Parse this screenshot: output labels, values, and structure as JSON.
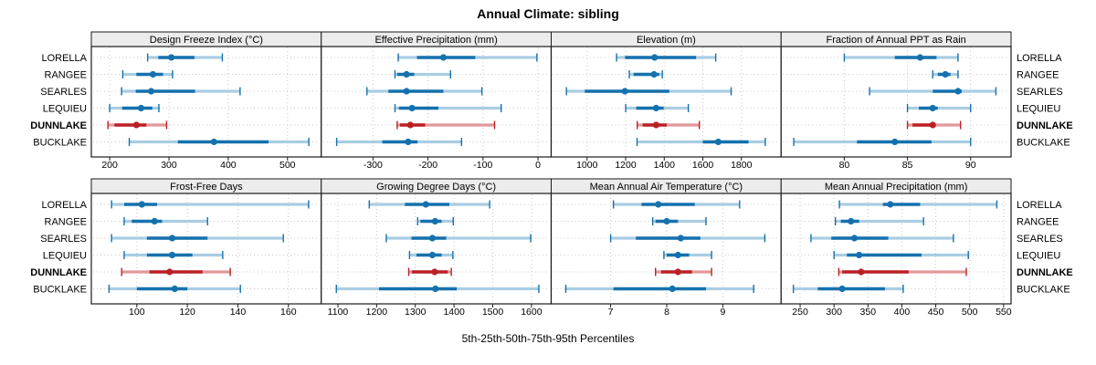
{
  "title": "Annual Climate: sibling",
  "footer": "5th-25th-50th-75th-95th Percentiles",
  "sites": [
    "LORELLA",
    "RANGEE",
    "SEARLES",
    "LEQUIEU",
    "DUNNLAKE",
    "BUCKLAKE"
  ],
  "highlight_site": "DUNNLAKE",
  "colors": {
    "series_dark": "#1571ad",
    "series_light": "#a9cde3",
    "highlight_dark": "#bb2026",
    "highlight_light": "#e2989a",
    "strip_bg": "#ececec",
    "panel_border": "#1a1a1a",
    "grid": "#c9c9c9",
    "text": "#000000"
  },
  "chart_data": {
    "type": "dotplot-percentiles",
    "percentiles": [
      5,
      25,
      50,
      75,
      95
    ],
    "panels": [
      {
        "title": "Design Freeze Index (°C)",
        "row": 0,
        "col": 0,
        "domain": [
          169,
          557
        ],
        "ticks": [
          200,
          300,
          400,
          500
        ],
        "series": [
          {
            "site": "LORELLA",
            "p": [
              264,
              282,
              304,
              343,
              390
            ]
          },
          {
            "site": "RANGEE",
            "p": [
              222,
              245,
              273,
              290,
              306
            ]
          },
          {
            "site": "SEARLES",
            "p": [
              220,
              244,
              270,
              344,
              420
            ]
          },
          {
            "site": "LEQUIEU",
            "p": [
              200,
              221,
              253,
              272,
              283
            ]
          },
          {
            "site": "DUNNLAKE",
            "p": [
              197,
              208,
              245,
              262,
              296
            ]
          },
          {
            "site": "BUCKLAKE",
            "p": [
              233,
              315,
              376,
              468,
              536
            ]
          }
        ]
      },
      {
        "title": "Effective Precipitation (mm)",
        "row": 0,
        "col": 1,
        "domain": [
          -394,
          24
        ],
        "ticks": [
          -300,
          -200,
          -100,
          0
        ],
        "series": [
          {
            "site": "LORELLA",
            "p": [
              -254,
              -220,
              -172,
              -114,
              -2
            ]
          },
          {
            "site": "RANGEE",
            "p": [
              -260,
              -256,
              -239,
              -225,
              -159
            ]
          },
          {
            "site": "SEARLES",
            "p": [
              -311,
              -272,
              -239,
              -172,
              -102
            ]
          },
          {
            "site": "LEQUIEU",
            "p": [
              -260,
              -253,
              -229,
              -181,
              -67
            ]
          },
          {
            "site": "DUNNLAKE",
            "p": [
              -256,
              -251,
              -232,
              -205,
              -79
            ]
          },
          {
            "site": "BUCKLAKE",
            "p": [
              -366,
              -283,
              -236,
              -219,
              -139
            ]
          }
        ]
      },
      {
        "title": "Elevation (m)",
        "row": 0,
        "col": 2,
        "domain": [
          814,
          2006
        ],
        "ticks": [
          1000,
          1200,
          1400,
          1600,
          1800
        ],
        "series": [
          {
            "site": "LORELLA",
            "p": [
              1153,
              1197,
              1350,
              1565,
              1667
            ]
          },
          {
            "site": "RANGEE",
            "p": [
              1219,
              1241,
              1347,
              1374,
              1390
            ]
          },
          {
            "site": "SEARLES",
            "p": [
              893,
              988,
              1196,
              1426,
              1747
            ]
          },
          {
            "site": "LEQUIEU",
            "p": [
              1200,
              1255,
              1358,
              1397,
              1525
            ]
          },
          {
            "site": "DUNNLAKE",
            "p": [
              1260,
              1288,
              1358,
              1413,
              1582
            ]
          },
          {
            "site": "BUCKLAKE",
            "p": [
              1259,
              1600,
              1680,
              1837,
              1924
            ]
          }
        ]
      },
      {
        "title": "Fraction of Annual PPT as Rain",
        "row": 0,
        "col": 3,
        "domain": [
          75,
          93.2
        ],
        "ticks": [
          80,
          85,
          90
        ],
        "series": [
          {
            "site": "LORELLA",
            "p": [
              80,
              84,
              86,
              87.3,
              89
            ]
          },
          {
            "site": "RANGEE",
            "p": [
              87,
              87.4,
              88,
              88.4,
              89
            ]
          },
          {
            "site": "SEARLES",
            "p": [
              82,
              87,
              89,
              89.3,
              92
            ]
          },
          {
            "site": "LEQUIEU",
            "p": [
              85,
              85.9,
              87,
              87.4,
              90
            ]
          },
          {
            "site": "DUNNLAKE",
            "p": [
              85,
              85.4,
              87,
              87.2,
              89.2
            ]
          },
          {
            "site": "BUCKLAKE",
            "p": [
              76,
              81,
              84,
              86.9,
              90
            ]
          }
        ]
      },
      {
        "title": "Frost-Free Days",
        "row": 1,
        "col": 0,
        "domain": [
          82,
          173
        ],
        "ticks": [
          100,
          120,
          140,
          160
        ],
        "series": [
          {
            "site": "LORELLA",
            "p": [
              90,
              95,
              102,
              108,
              168
            ]
          },
          {
            "site": "RANGEE",
            "p": [
              95,
              98,
              107,
              110,
              128
            ]
          },
          {
            "site": "SEARLES",
            "p": [
              90,
              104,
              114,
              128,
              158
            ]
          },
          {
            "site": "LEQUIEU",
            "p": [
              95,
              104,
              114,
              122,
              134
            ]
          },
          {
            "site": "DUNNLAKE",
            "p": [
              94,
              105,
              113,
              126,
              137
            ]
          },
          {
            "site": "BUCKLAKE",
            "p": [
              89,
              100,
              115,
              120,
              141
            ]
          }
        ]
      },
      {
        "title": "Growing Degree Days (°C)",
        "row": 1,
        "col": 1,
        "domain": [
          1057,
          1651
        ],
        "ticks": [
          1100,
          1200,
          1300,
          1400,
          1500,
          1600
        ],
        "series": [
          {
            "site": "LORELLA",
            "p": [
              1181,
              1273,
              1327,
              1388,
              1492
            ]
          },
          {
            "site": "RANGEE",
            "p": [
              1306,
              1313,
              1351,
              1368,
              1398
            ]
          },
          {
            "site": "SEARLES",
            "p": [
              1225,
              1290,
              1344,
              1380,
              1598
            ]
          },
          {
            "site": "LEQUIEU",
            "p": [
              1285,
              1303,
              1344,
              1368,
              1397
            ]
          },
          {
            "site": "DUNNLAKE",
            "p": [
              1283,
              1291,
              1350,
              1384,
              1393
            ]
          },
          {
            "site": "BUCKLAKE",
            "p": [
              1096,
              1206,
              1352,
              1407,
              1619
            ]
          }
        ]
      },
      {
        "title": "Mean Annual Air Temperature (°C)",
        "row": 1,
        "col": 2,
        "domain": [
          5.94,
          10.04
        ],
        "ticks": [
          7,
          8,
          9
        ],
        "series": [
          {
            "site": "LORELLA",
            "p": [
              7.05,
              7.55,
              7.85,
              8.5,
              9.3
            ]
          },
          {
            "site": "RANGEE",
            "p": [
              7.75,
              7.8,
              8.0,
              8.2,
              8.7
            ]
          },
          {
            "site": "SEARLES",
            "p": [
              7.0,
              7.45,
              8.25,
              8.6,
              9.75
            ]
          },
          {
            "site": "LEQUIEU",
            "p": [
              7.95,
              8.0,
              8.2,
              8.4,
              8.8
            ]
          },
          {
            "site": "DUNNLAKE",
            "p": [
              7.8,
              7.9,
              8.2,
              8.45,
              8.8
            ]
          },
          {
            "site": "BUCKLAKE",
            "p": [
              6.2,
              7.05,
              8.1,
              8.7,
              9.55
            ]
          }
        ]
      },
      {
        "title": "Mean Annual Precipitation (mm)",
        "row": 1,
        "col": 3,
        "domain": [
          222,
          561
        ],
        "ticks": [
          250,
          300,
          350,
          400,
          450,
          500,
          550
        ],
        "series": [
          {
            "site": "LORELLA",
            "p": [
              308,
              372,
              383,
              427,
              540
            ]
          },
          {
            "site": "RANGEE",
            "p": [
              302,
              310,
              325,
              337,
              432
            ]
          },
          {
            "site": "SEARLES",
            "p": [
              266,
              296,
              330,
              380,
              476
            ]
          },
          {
            "site": "LEQUIEU",
            "p": [
              300,
              319,
              337,
              429,
              498
            ]
          },
          {
            "site": "DUNNLAKE",
            "p": [
              307,
              312,
              340,
              410,
              495
            ]
          },
          {
            "site": "BUCKLAKE",
            "p": [
              240,
              276,
              312,
              375,
              402
            ]
          }
        ]
      }
    ]
  }
}
